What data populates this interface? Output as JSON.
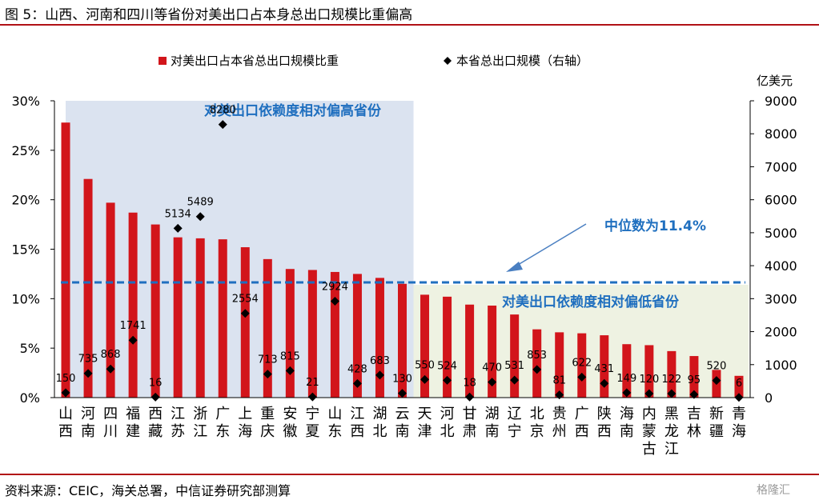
{
  "figure_title": "图 5：山西、河南和四川等省份对美出口占本身总出口规模比重偏高",
  "source": "资料来源：CEIC，海关总署，中信证券研究部测算",
  "watermark": "格隆汇",
  "colors": {
    "bar": "#d2151b",
    "marker": "#000000",
    "median_line": "#1f6fbf",
    "high_region": "#dbe3f0",
    "low_region": "#eef2e2",
    "annotation_text": "#1f6fbf",
    "rule": "#b11116"
  },
  "chart_data": {
    "type": "bar",
    "categories": [
      "山西",
      "河南",
      "四川",
      "福建",
      "西藏",
      "江苏",
      "浙江",
      "广东",
      "上海",
      "重庆",
      "安徽",
      "宁夏",
      "山东",
      "江西",
      "湖北",
      "云南",
      "天津",
      "河北",
      "甘肃",
      "湖南",
      "辽宁",
      "北京",
      "贵州",
      "广西",
      "陕西",
      "海南",
      "内蒙古",
      "黑龙江",
      "吉林",
      "新疆",
      "青海"
    ],
    "series": [
      {
        "name": "对美出口占本省总出口规模比重",
        "axis": "left",
        "unit": "%",
        "values": [
          27.8,
          22.1,
          19.7,
          18.7,
          17.5,
          16.2,
          16.1,
          16.0,
          15.2,
          14.0,
          13.0,
          12.9,
          12.7,
          12.5,
          12.1,
          11.5,
          10.4,
          10.2,
          9.4,
          9.3,
          8.4,
          6.9,
          6.6,
          6.5,
          6.3,
          5.4,
          5.3,
          4.7,
          4.2,
          2.8,
          2.2
        ]
      },
      {
        "name": "本省总出口规模（右轴）",
        "axis": "right",
        "unit": "亿美元",
        "values": [
          150,
          735,
          868,
          1741,
          16,
          5134,
          5489,
          8280,
          2554,
          713,
          815,
          21,
          2924,
          428,
          683,
          130,
          550,
          524,
          18,
          470,
          531,
          853,
          81,
          622,
          431,
          149,
          120,
          122,
          95,
          520,
          6
        ],
        "labels": [
          "150",
          "735",
          "868",
          "1741",
          "16",
          "5134",
          "5489",
          "8280",
          "2554",
          "713",
          "815",
          "21",
          "2924",
          "428",
          "683",
          "130",
          "550",
          "524",
          "18",
          "470",
          "531",
          "853",
          "81",
          "622",
          "431",
          "149",
          "120",
          "122",
          "95",
          "520",
          "6"
        ]
      }
    ],
    "y_left": {
      "min": 0,
      "max": 30,
      "ticks": [
        "0%",
        "5%",
        "10%",
        "15%",
        "20%",
        "25%",
        "30%"
      ]
    },
    "y_right": {
      "min": 0,
      "max": 9000,
      "unit_label": "亿美元",
      "ticks": [
        "0",
        "1000",
        "2000",
        "3000",
        "4000",
        "5000",
        "6000",
        "7000",
        "8000",
        "9000"
      ]
    },
    "median": {
      "value": 11.4,
      "label": "中位数为11.4%"
    },
    "regions": [
      {
        "label": "对美出口依赖度相对偏高省份",
        "from_index": 0,
        "to_index": 15
      },
      {
        "label": "对美出口依赖度相对偏低省份",
        "from_index": 16,
        "to_index": 30
      }
    ],
    "legend_position": "top",
    "grid": false
  }
}
